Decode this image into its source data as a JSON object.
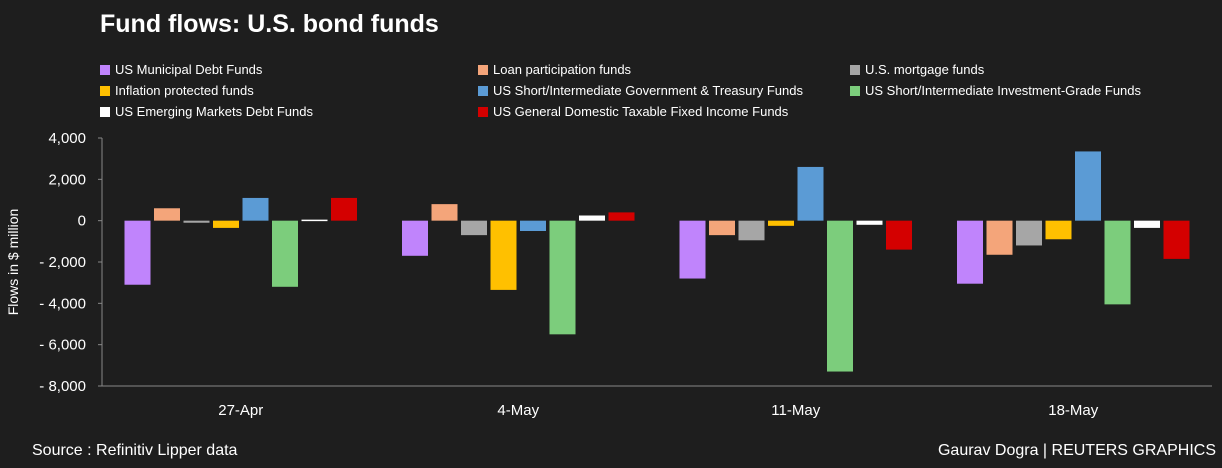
{
  "chart_data": {
    "type": "bar",
    "title": "Fund flows: U.S. bond funds",
    "ylabel": "Flows in $ million",
    "xlabel": "",
    "ylim": [
      -8000,
      4000
    ],
    "yticks": [
      4000,
      2000,
      0,
      -2000,
      -4000,
      -6000,
      -8000
    ],
    "ytick_labels": [
      "4,000",
      "2,000",
      "0",
      "- 2,000",
      "- 4,000",
      "- 6,000",
      "- 8,000"
    ],
    "categories": [
      "27-Apr",
      "4-May",
      "11-May",
      "18-May"
    ],
    "series": [
      {
        "name": "US Municipal Debt Funds",
        "color": "#c084fc",
        "values": [
          -3100,
          -1700,
          -2800,
          -3050
        ]
      },
      {
        "name": "Loan participation funds",
        "color": "#f4a57a",
        "values": [
          600,
          800,
          -700,
          -1650
        ]
      },
      {
        "name": "U.S. mortgage funds",
        "color": "#a6a6a6",
        "values": [
          -100,
          -700,
          -950,
          -1200
        ]
      },
      {
        "name": "Inflation protected funds",
        "color": "#ffc000",
        "values": [
          -350,
          -3350,
          -250,
          -900
        ]
      },
      {
        "name": "US Short/Intermediate Government & Treasury Funds",
        "color": "#5b9bd5",
        "values": [
          1100,
          -500,
          2600,
          3350
        ]
      },
      {
        "name": "US Short/Intermediate Investment-Grade Funds",
        "color": "#7ccd7c",
        "values": [
          -3200,
          -5500,
          -7300,
          -4050
        ]
      },
      {
        "name": "US Emerging Markets Debt Funds",
        "color": "#ffffff",
        "values": [
          50,
          250,
          -200,
          -350
        ]
      },
      {
        "name": "US General Domestic Taxable Fixed Income Funds",
        "color": "#d40000",
        "values": [
          1100,
          400,
          -1400,
          -1850
        ]
      }
    ]
  },
  "footer": {
    "source": "Source : Refinitiv Lipper data",
    "credit": "Gaurav Dogra | REUTERS GRAPHICS"
  }
}
